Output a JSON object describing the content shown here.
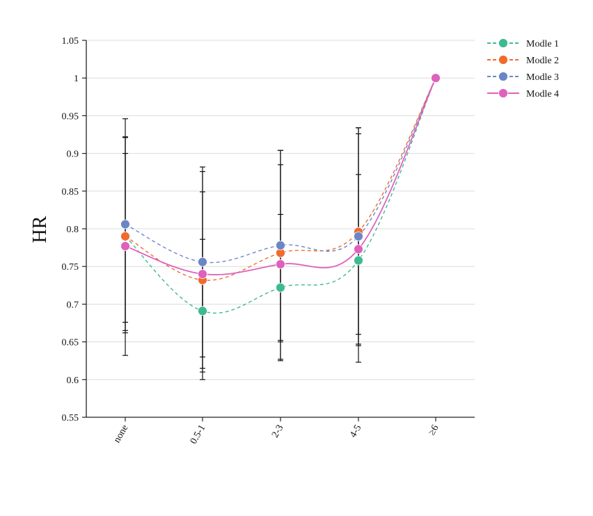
{
  "chart_data": {
    "type": "line",
    "title": "",
    "xlabel": "",
    "ylabel": "HR",
    "ylim": [
      0.55,
      1.05
    ],
    "yticks": [
      "0.55",
      "0.6",
      "0.65",
      "0.7",
      "0.75",
      "0.8",
      "0.85",
      "0.9",
      "0.95",
      "1",
      "1.05"
    ],
    "ytick_values": [
      0.55,
      0.6,
      0.65,
      0.7,
      0.75,
      0.8,
      0.85,
      0.9,
      0.95,
      1.0,
      1.05
    ],
    "categories": [
      "none",
      "0.5-1",
      "2-3",
      "4-5",
      "≥6"
    ],
    "grid": true,
    "legend_position": "top-right",
    "series": [
      {
        "name": "Modle 1",
        "color": "#3dbb8f",
        "dashed": true,
        "values": [
          0.79,
          0.691,
          0.722,
          0.758,
          1.0
        ],
        "error_low": [
          0.665,
          0.6,
          0.625,
          0.623,
          null
        ],
        "error_high": [
          0.9,
          0.849,
          0.885,
          0.872,
          null
        ]
      },
      {
        "name": "Modle 2",
        "color": "#f26b2e",
        "dashed": true,
        "values": [
          0.79,
          0.732,
          0.768,
          0.796,
          1.0
        ],
        "error_low": [
          0.662,
          0.61,
          0.652,
          0.647,
          null
        ],
        "error_high": [
          0.921,
          0.876,
          0.904,
          0.934,
          null
        ]
      },
      {
        "name": "Modle 3",
        "color": "#6b86c6",
        "dashed": true,
        "values": [
          0.806,
          0.756,
          0.778,
          0.79,
          1.0
        ],
        "error_low": [
          0.676,
          0.63,
          0.65,
          0.66,
          null
        ],
        "error_high": [
          0.946,
          0.882,
          0.904,
          0.934,
          null
        ]
      },
      {
        "name": "Modle 4",
        "color": "#e060bd",
        "dashed": false,
        "values": [
          0.777,
          0.74,
          0.753,
          0.773,
          1.0
        ],
        "error_low": [
          0.632,
          0.615,
          0.627,
          0.645,
          null
        ],
        "error_high": [
          0.922,
          0.786,
          0.819,
          0.926,
          null
        ]
      }
    ]
  }
}
